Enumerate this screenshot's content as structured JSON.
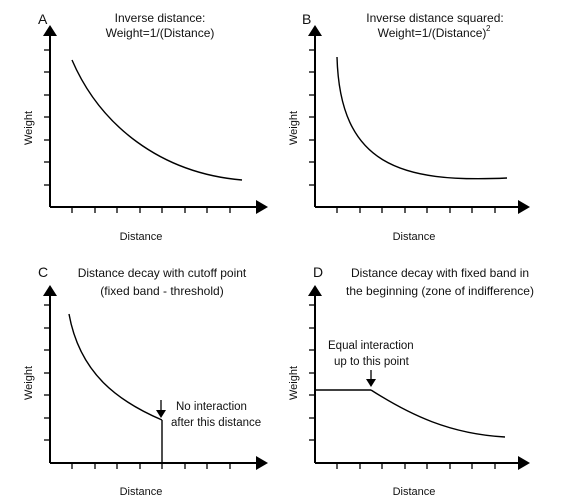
{
  "panels": [
    {
      "letter": "A",
      "title_lines": [
        "Inverse distance:",
        "Weight=1/(Distance)"
      ],
      "title_superscript": "",
      "x_label": "Distance",
      "y_label": "Weight",
      "curve": "inverse distance",
      "annotation_lines": []
    },
    {
      "letter": "B",
      "title_lines": [
        "Inverse distance squared:",
        "Weight=1/(Distance)"
      ],
      "title_superscript": "2",
      "x_label": "Distance",
      "y_label": "Weight",
      "curve": "inverse distance squared",
      "annotation_lines": []
    },
    {
      "letter": "C",
      "title_lines": [
        "Distance decay with cutoff point",
        "(fixed band - threshold)"
      ],
      "title_superscript": "",
      "x_label": "Distance",
      "y_label": "Weight",
      "curve": "decay with cutoff",
      "annotation_lines": [
        "No interaction",
        "after this distance"
      ]
    },
    {
      "letter": "D",
      "title_lines": [
        "Distance decay with fixed band in",
        "the beginning (zone of indifference)"
      ],
      "title_superscript": "",
      "x_label": "Distance",
      "y_label": "Weight",
      "curve": "flat then decay",
      "annotation_lines": [
        "Equal interaction",
        "up to this point"
      ]
    }
  ]
}
